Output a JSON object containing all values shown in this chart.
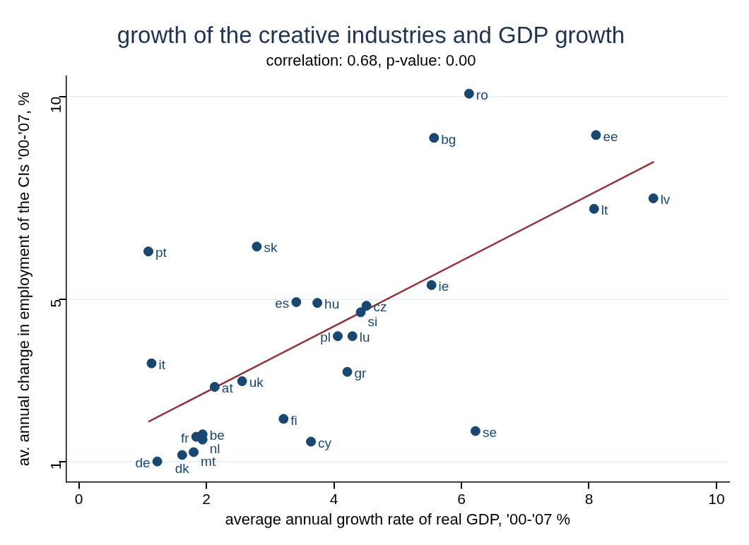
{
  "chart_data": {
    "type": "scatter",
    "title": "growth of the creative industries and GDP growth",
    "subtitle": "correlation: 0.68, p-value: 0.00",
    "xlabel": "average annual growth rate of real GDP, '00-'07 %",
    "ylabel": "av. annual change in employment of the CIs '00-'07, %",
    "xlim": [
      -0.2,
      10.2
    ],
    "xticks": [
      0,
      2,
      4,
      6,
      8,
      10
    ],
    "ylim": [
      0.5,
      10.5
    ],
    "yticks": [
      1,
      5,
      10
    ],
    "grid": "y",
    "marker": "circle",
    "series": [
      {
        "color": "#1a476f",
        "x": [
          6.12,
          5.57,
          8.11,
          9.01,
          8.08,
          1.09,
          2.79,
          5.53,
          3.41,
          3.74,
          4.51,
          4.42,
          4.06,
          4.29,
          1.14,
          4.21,
          2.56,
          2.13,
          3.21,
          6.22,
          3.64,
          1.84,
          1.94,
          1.94,
          1.8,
          1.62,
          1.23
        ],
        "values": [
          10.07,
          8.98,
          9.05,
          7.49,
          7.23,
          6.18,
          6.3,
          5.35,
          4.93,
          4.91,
          4.84,
          4.68,
          4.09,
          4.09,
          3.42,
          3.21,
          2.98,
          2.84,
          2.05,
          1.75,
          1.49,
          1.61,
          1.67,
          1.54,
          1.23,
          1.16,
          1.0
        ],
        "value_labels": [
          "ro",
          "bg",
          "ee",
          "lv",
          "lt",
          "pt",
          "sk",
          "ie",
          "es",
          "hu",
          "cz",
          "si",
          "pl",
          "lu",
          "it",
          "gr",
          "uk",
          "at",
          "fi",
          "se",
          "cy",
          "fr",
          "be",
          "nl",
          "mt",
          "dk",
          "de"
        ]
      },
      {
        "type": "line",
        "marker": "none",
        "color": "#90353b",
        "x": [
          1.09,
          9.02
        ],
        "values": [
          1.98,
          8.39
        ]
      }
    ]
  }
}
